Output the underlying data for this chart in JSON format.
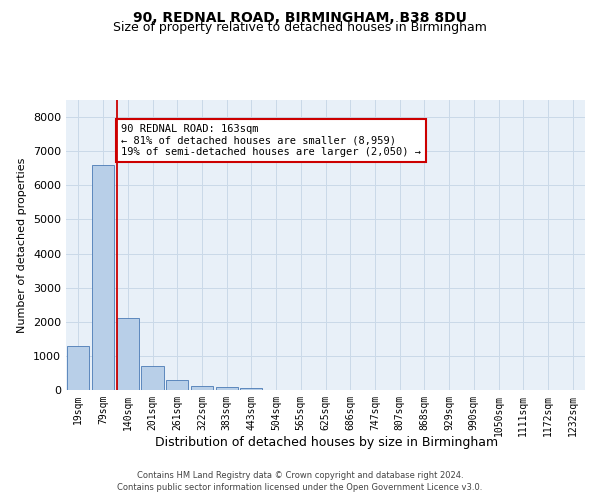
{
  "title": "90, REDNAL ROAD, BIRMINGHAM, B38 8DU",
  "subtitle": "Size of property relative to detached houses in Birmingham",
  "xlabel": "Distribution of detached houses by size in Birmingham",
  "ylabel": "Number of detached properties",
  "bar_labels": [
    "19sqm",
    "79sqm",
    "140sqm",
    "201sqm",
    "261sqm",
    "322sqm",
    "383sqm",
    "443sqm",
    "504sqm",
    "565sqm",
    "625sqm",
    "686sqm",
    "747sqm",
    "807sqm",
    "868sqm",
    "929sqm",
    "990sqm",
    "1050sqm",
    "1111sqm",
    "1172sqm",
    "1232sqm"
  ],
  "bar_values": [
    1300,
    6600,
    2100,
    700,
    300,
    130,
    80,
    60,
    0,
    0,
    0,
    0,
    0,
    0,
    0,
    0,
    0,
    0,
    0,
    0,
    0
  ],
  "bar_color": "#b8cfe8",
  "bar_edge_color": "#4a7ab5",
  "vline_color": "#cc0000",
  "vline_index": 1.575,
  "annotation_text": "90 REDNAL ROAD: 163sqm\n← 81% of detached houses are smaller (8,959)\n19% of semi-detached houses are larger (2,050) →",
  "annotation_box_color": "#ffffff",
  "annotation_box_edge": "#cc0000",
  "ylim": [
    0,
    8500
  ],
  "yticks": [
    0,
    1000,
    2000,
    3000,
    4000,
    5000,
    6000,
    7000,
    8000
  ],
  "grid_color": "#cad9e8",
  "background_color": "#e8f0f8",
  "footer_line1": "Contains HM Land Registry data © Crown copyright and database right 2024.",
  "footer_line2": "Contains public sector information licensed under the Open Government Licence v3.0.",
  "title_fontsize": 10,
  "subtitle_fontsize": 9,
  "tick_fontsize": 7,
  "ylabel_fontsize": 8,
  "xlabel_fontsize": 9,
  "footer_fontsize": 6
}
